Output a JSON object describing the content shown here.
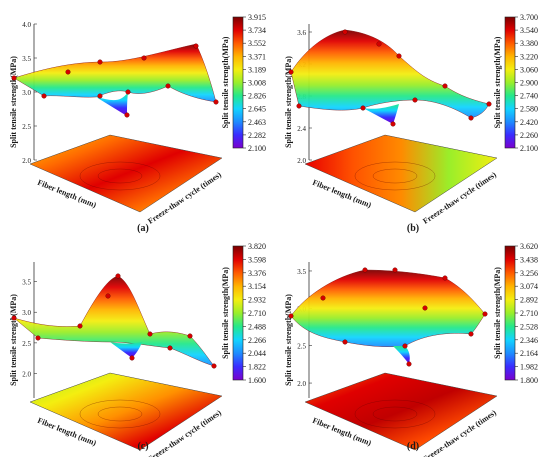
{
  "surface_gradient": [
    "#7a00cc",
    "#3a2cff",
    "#1e8cff",
    "#12d4ff",
    "#25e88a",
    "#9aee2a",
    "#f4ee10",
    "#ffb400",
    "#ff5a00",
    "#e00000",
    "#7a0000"
  ],
  "chart_data": [
    {
      "type": "surface",
      "panel_label": "(a)",
      "zlabel": "Split tensile strength(MPa)",
      "xlabel": "Fiber length (mm)",
      "ylabel": "Freeze-thaw cycle (times)",
      "z_ticks": [
        "4.0",
        "3.5",
        "3.0",
        "2.5",
        "2.0"
      ],
      "zlim": [
        2.0,
        4.0
      ],
      "colorbar_title": "Split tensile strength(MPa)",
      "colorbar_ticks": [
        "3.915",
        "3.734",
        "3.552",
        "3.371",
        "3.189",
        "3.008",
        "2.826",
        "2.645",
        "2.463",
        "2.282",
        "2.100"
      ],
      "colorbar_range": [
        2.1,
        3.915
      ]
    },
    {
      "type": "surface",
      "panel_label": "(b)",
      "zlabel": "Split tensile strength(MPa)",
      "xlabel": "Fiber length (mm)",
      "ylabel": "Freeze-thaw cycle (times)",
      "z_ticks": [
        "3.6",
        "3.2",
        "2.8",
        "2.4",
        "2.0"
      ],
      "zlim": [
        2.0,
        3.7
      ],
      "colorbar_title": "Split tensile strength(MPa)",
      "colorbar_ticks": [
        "3.700",
        "3.540",
        "3.380",
        "3.220",
        "3.060",
        "2.900",
        "2.740",
        "2.580",
        "2.420",
        "2.260",
        "2.100"
      ],
      "colorbar_range": [
        2.1,
        3.7
      ]
    },
    {
      "type": "surface",
      "panel_label": "(c)",
      "zlabel": "Split tensile strength(MPa)",
      "xlabel": "Fiber length (mm)",
      "ylabel": "Freeze-thaw cycle (times)",
      "z_ticks": [
        "3.5",
        "3.0",
        "2.5",
        "2.0"
      ],
      "zlim": [
        1.6,
        3.82
      ],
      "colorbar_title": "Split tensile strength(MPa)",
      "colorbar_ticks": [
        "3.820",
        "3.598",
        "3.376",
        "3.154",
        "2.932",
        "2.710",
        "2.488",
        "2.266",
        "2.044",
        "1.822",
        "1.600"
      ],
      "colorbar_range": [
        1.6,
        3.82
      ]
    },
    {
      "type": "surface",
      "panel_label": "(d)",
      "zlabel": "Split tensile strength(MPa)",
      "xlabel": "Fiber length (mm)",
      "ylabel": "Freeze-thaw cycle (times)",
      "z_ticks": [
        "3.5",
        "3.0",
        "2.5",
        "2.0"
      ],
      "zlim": [
        1.8,
        3.62
      ],
      "colorbar_title": "Split tensile strength(MPa)",
      "colorbar_ticks": [
        "3.620",
        "3.438",
        "3.256",
        "3.074",
        "2.892",
        "2.710",
        "2.528",
        "2.346",
        "2.164",
        "1.982",
        "1.800"
      ],
      "colorbar_range": [
        1.8,
        3.62
      ]
    }
  ]
}
